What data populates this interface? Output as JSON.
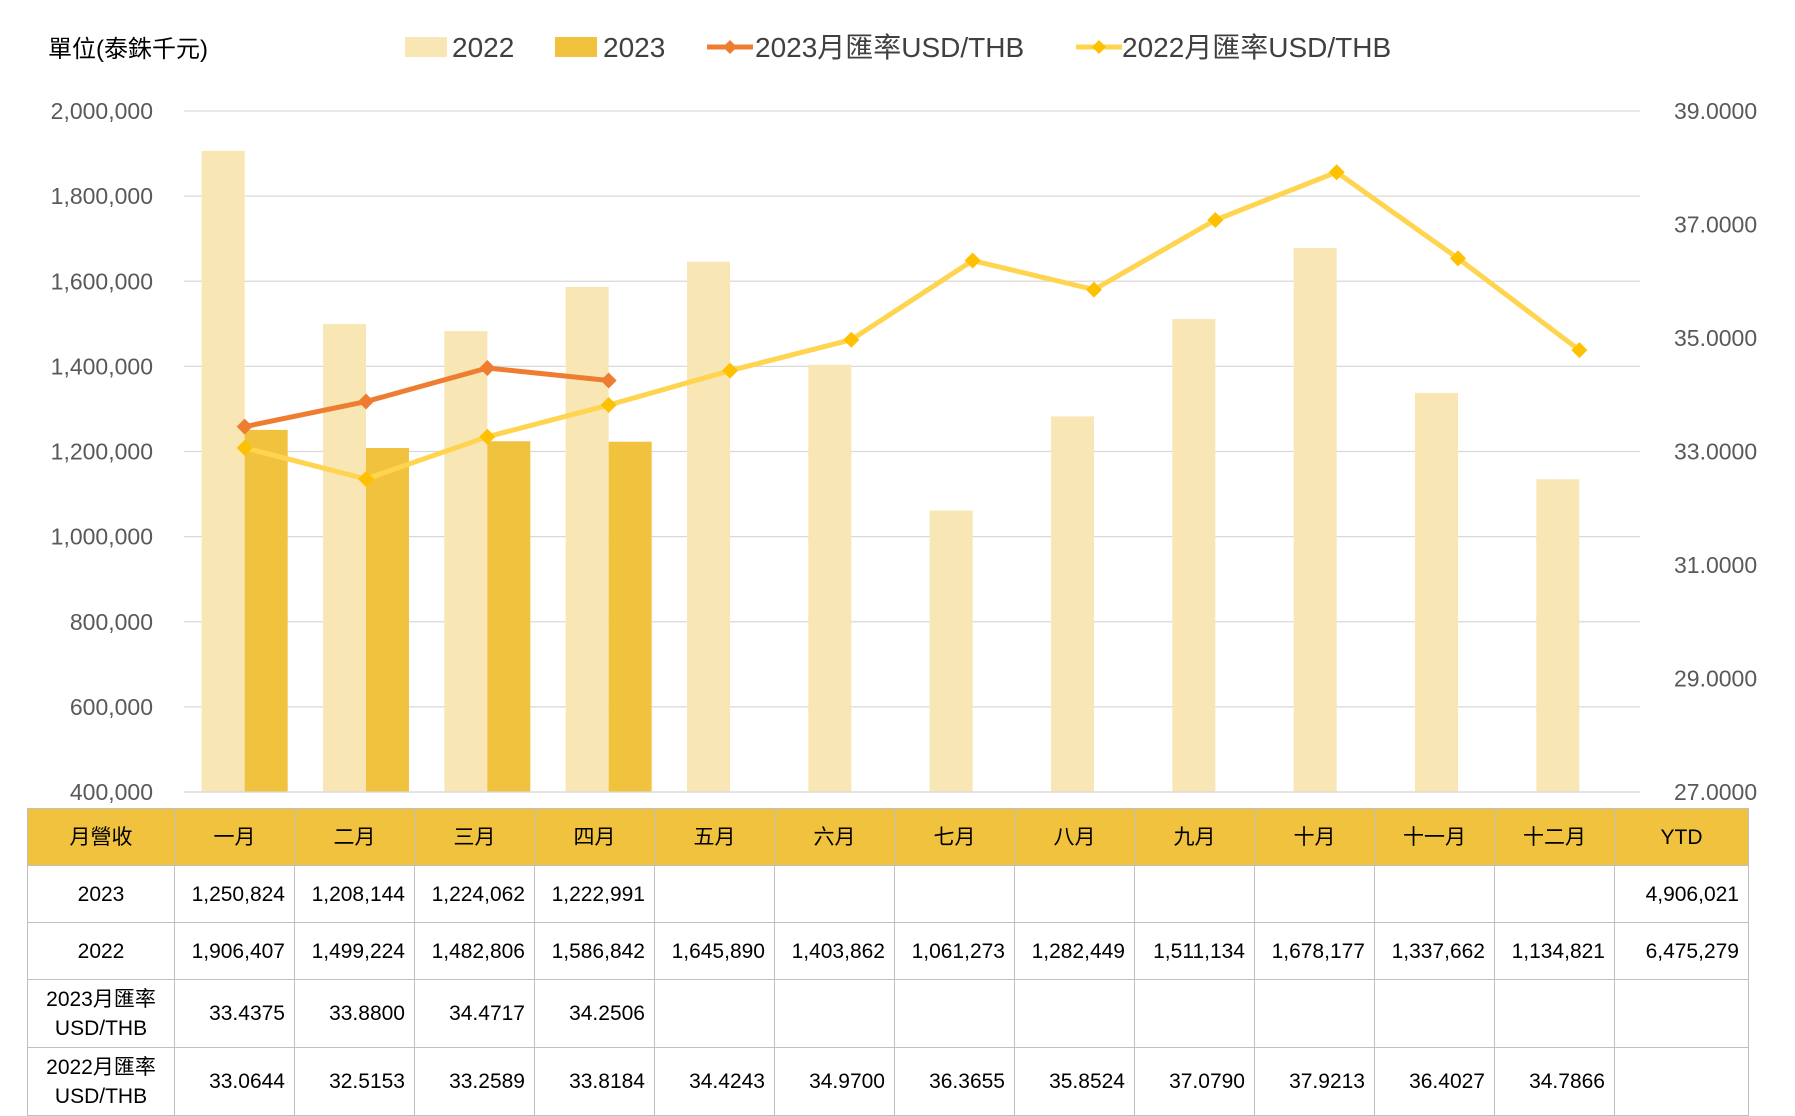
{
  "unit_label": "單位(泰銖千元)",
  "colors": {
    "bar_2022": "#f8e6b4",
    "bar_2023": "#f0c23e",
    "line_2023": "#ee7d31",
    "line_2022": "#ffd44f",
    "marker_2022": "#ffc000",
    "grid": "#d9d9d9",
    "table_header": "#f0c23e"
  },
  "chart_data": {
    "type": "bar",
    "categories": [
      "一月",
      "二月",
      "三月",
      "四月",
      "五月",
      "六月",
      "七月",
      "八月",
      "九月",
      "十月",
      "十一月",
      "十二月"
    ],
    "series": [
      {
        "name": "2022",
        "type": "bar",
        "axis": "left",
        "values": [
          1906407,
          1499224,
          1482806,
          1586842,
          1645890,
          1403862,
          1061273,
          1282449,
          1511134,
          1678177,
          1337662,
          1134821
        ]
      },
      {
        "name": "2023",
        "type": "bar",
        "axis": "left",
        "values": [
          1250824,
          1208144,
          1224062,
          1222991,
          null,
          null,
          null,
          null,
          null,
          null,
          null,
          null
        ]
      },
      {
        "name": "2023月匯率USD/THB",
        "type": "line",
        "axis": "right",
        "values": [
          33.4375,
          33.88,
          34.4717,
          34.2506,
          null,
          null,
          null,
          null,
          null,
          null,
          null,
          null
        ]
      },
      {
        "name": "2022月匯率USD/THB",
        "type": "line",
        "axis": "right",
        "values": [
          33.0644,
          32.5153,
          33.2589,
          33.8184,
          34.4243,
          34.97,
          36.3655,
          35.8524,
          37.079,
          37.9213,
          36.4027,
          34.7866
        ]
      }
    ],
    "y_left": {
      "range": [
        400000,
        2000000
      ],
      "ticks": [
        "400,000",
        "600,000",
        "800,000",
        "1,000,000",
        "1,200,000",
        "1,400,000",
        "1,600,000",
        "1,800,000",
        "2,000,000"
      ]
    },
    "y_right": {
      "range": [
        27,
        39
      ],
      "ticks": [
        "27.0000",
        "29.0000",
        "31.0000",
        "33.0000",
        "35.0000",
        "37.0000",
        "39.0000"
      ]
    },
    "grid": true,
    "legend_position": "top"
  },
  "table": {
    "header": [
      "月營收",
      "一月",
      "二月",
      "三月",
      "四月",
      "五月",
      "六月",
      "七月",
      "八月",
      "九月",
      "十月",
      "十一月",
      "十二月",
      "YTD"
    ],
    "rows": [
      {
        "label": [
          "2023"
        ],
        "cells": [
          "1,250,824",
          "1,208,144",
          "1,224,062",
          "1,222,991",
          "",
          "",
          "",
          "",
          "",
          "",
          "",
          "",
          "4,906,021"
        ]
      },
      {
        "label": [
          "2022"
        ],
        "cells": [
          "1,906,407",
          "1,499,224",
          "1,482,806",
          "1,586,842",
          "1,645,890",
          "1,403,862",
          "1,061,273",
          "1,282,449",
          "1,511,134",
          "1,678,177",
          "1,337,662",
          "1,134,821",
          "6,475,279"
        ]
      },
      {
        "label": [
          "2023月匯率",
          "USD/THB"
        ],
        "cells": [
          "33.4375",
          "33.8800",
          "34.4717",
          "34.2506",
          "",
          "",
          "",
          "",
          "",
          "",
          "",
          "",
          ""
        ]
      },
      {
        "label": [
          "2022月匯率",
          "USD/THB"
        ],
        "cells": [
          "33.0644",
          "32.5153",
          "33.2589",
          "33.8184",
          "34.4243",
          "34.9700",
          "36.3655",
          "35.8524",
          "37.0790",
          "37.9213",
          "36.4027",
          "34.7866",
          ""
        ]
      }
    ]
  }
}
